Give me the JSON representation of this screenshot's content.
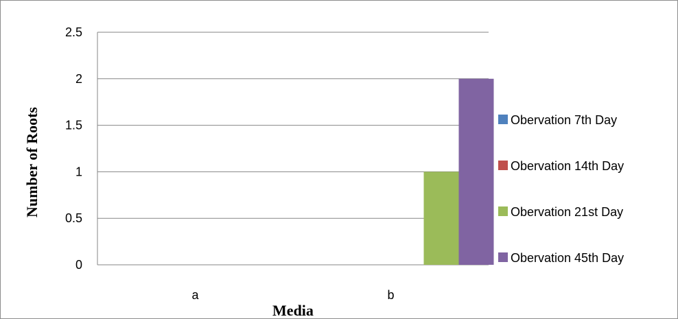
{
  "chart_data": {
    "type": "bar",
    "title": "",
    "xlabel": "Media",
    "ylabel": "Number of Roots",
    "categories": [
      "a",
      "b"
    ],
    "ylim": [
      0,
      2.5
    ],
    "yticks": [
      "0",
      "0.5",
      "1",
      "1.5",
      "2",
      "2.5"
    ],
    "grid": true,
    "legend_position": "right",
    "series": [
      {
        "name": "Obervation 7th Day",
        "color": "#4F81BD",
        "values": [
          0,
          0
        ]
      },
      {
        "name": "Obervation 14th Day",
        "color": "#C0504D",
        "values": [
          0,
          0
        ]
      },
      {
        "name": "Obervation 21st Day",
        "color": "#9BBB59",
        "values": [
          0,
          1
        ]
      },
      {
        "name": "Obervation 45th Day",
        "color": "#8064A2",
        "values": [
          0,
          2
        ]
      }
    ]
  }
}
